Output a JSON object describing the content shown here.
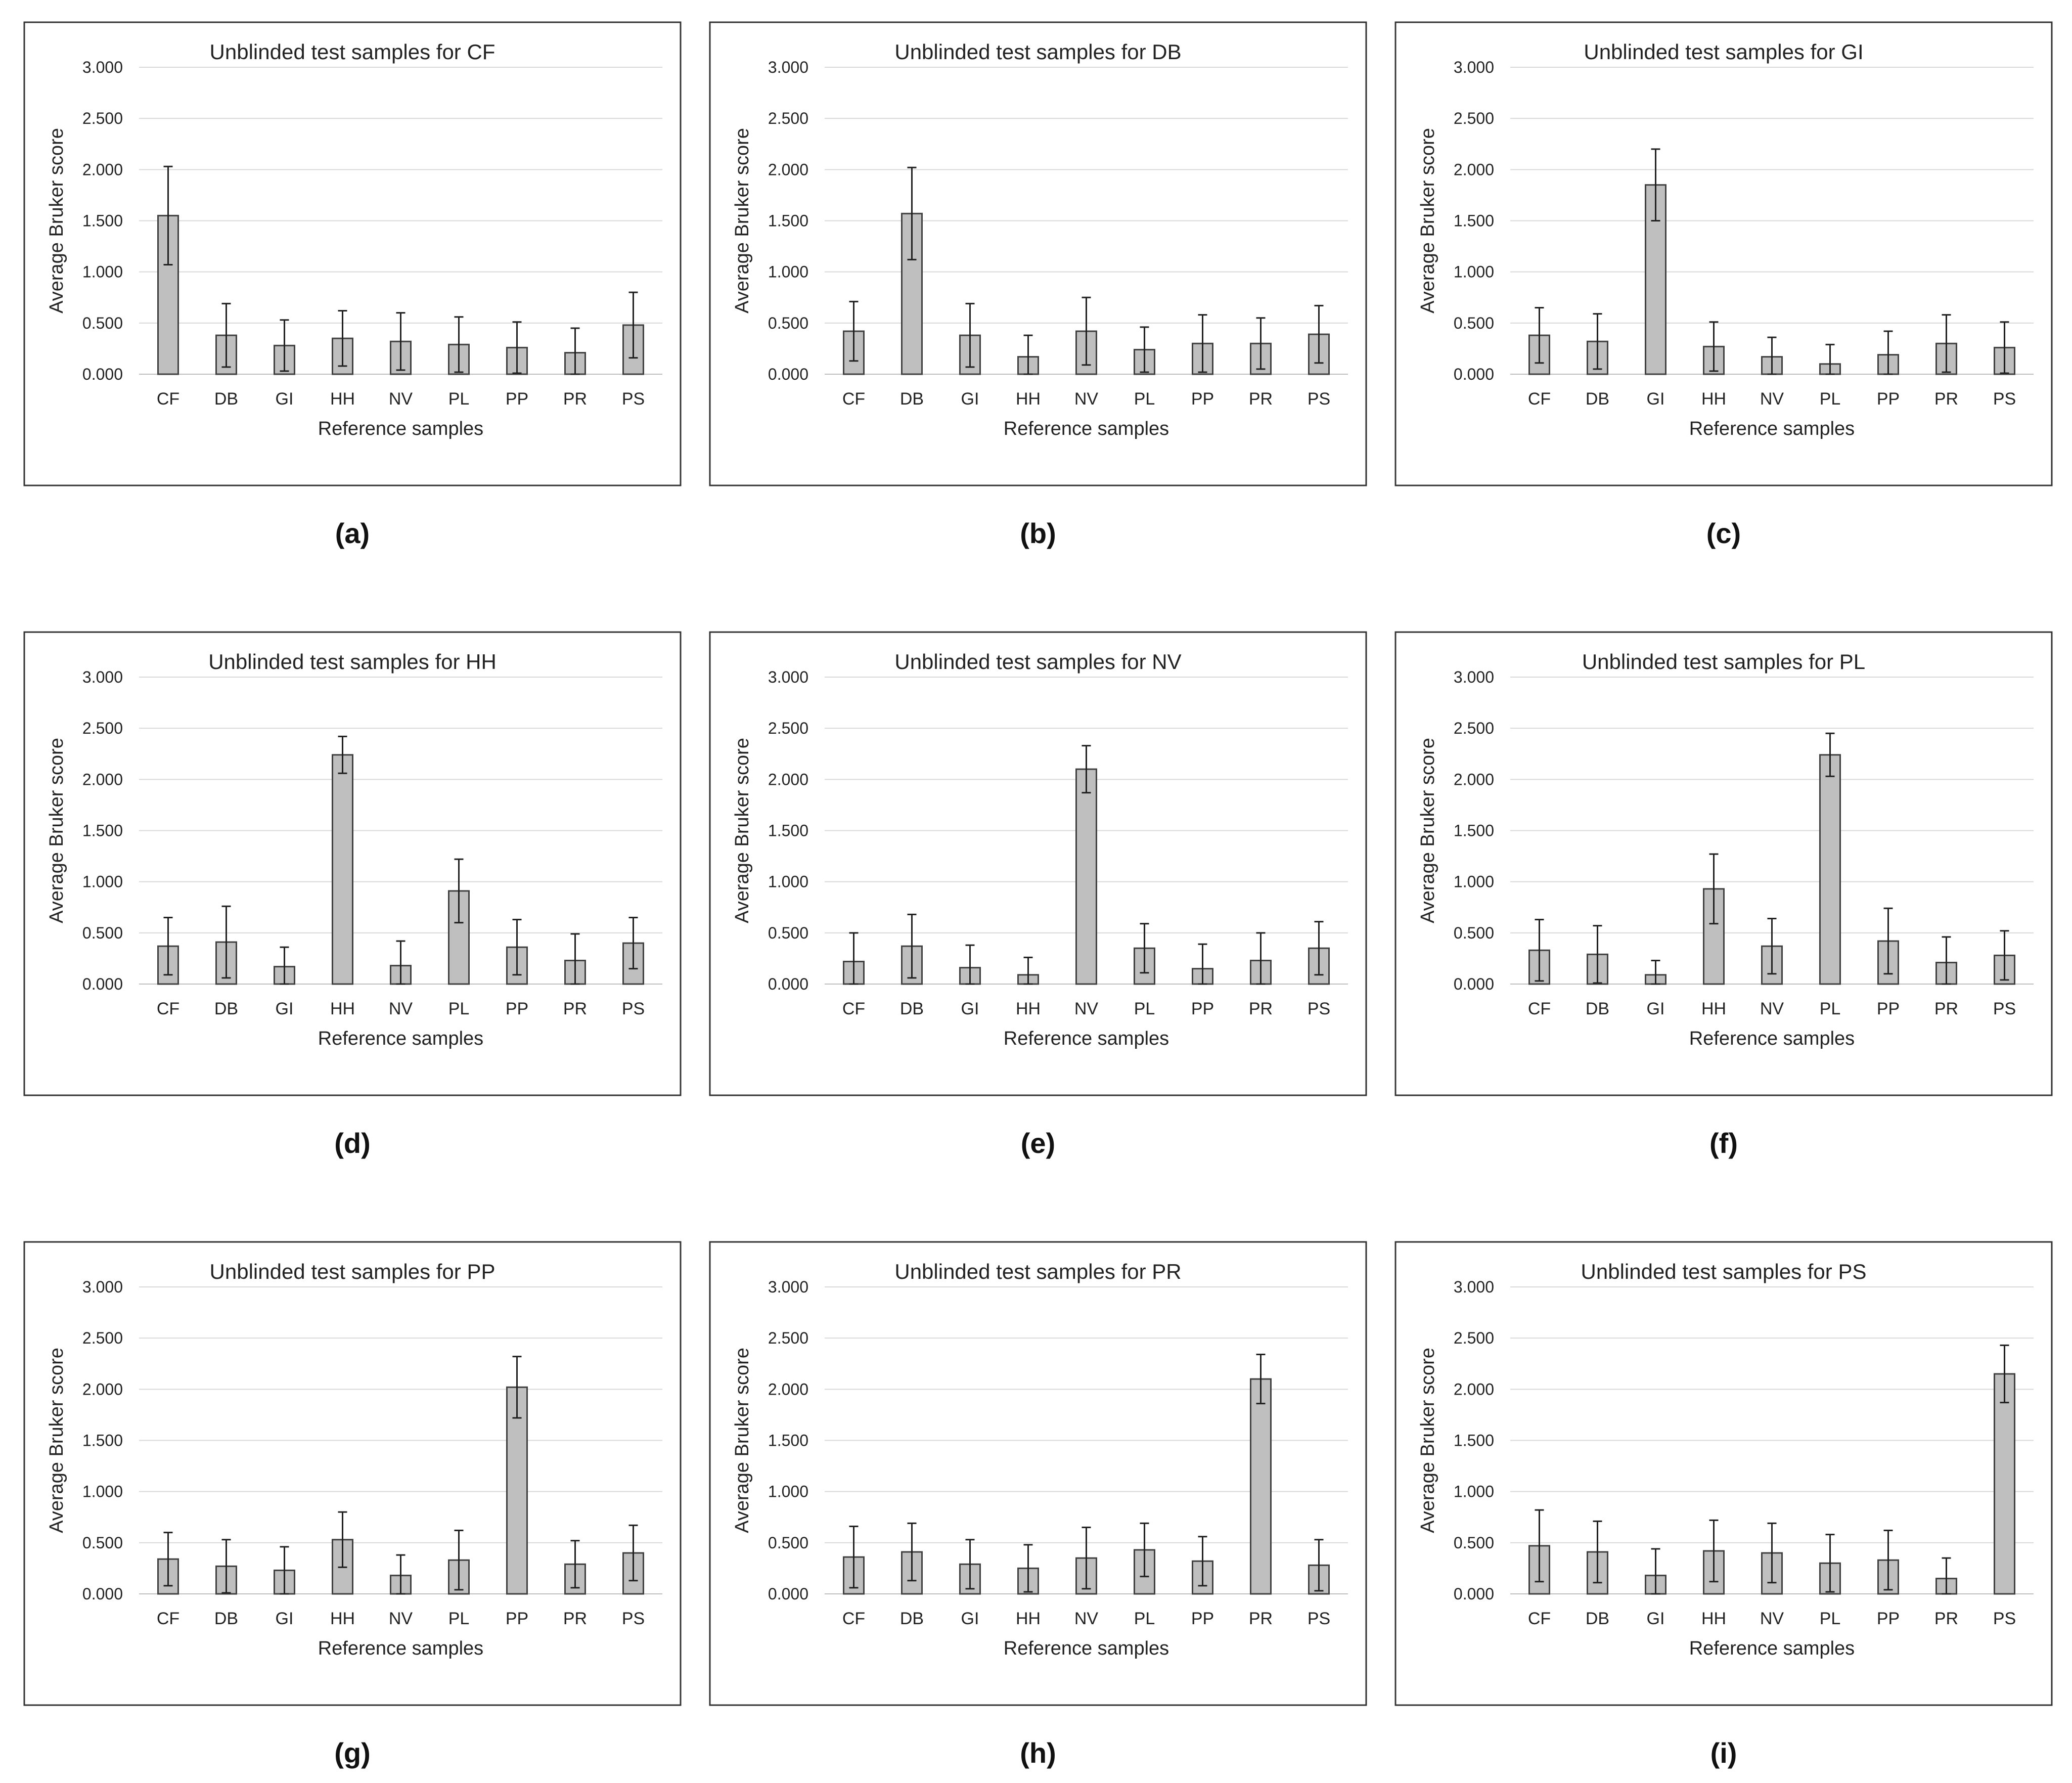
{
  "figure": {
    "background": "#ffffff",
    "bar_color": "#bfbfbf",
    "bar_edge_color": "#404040",
    "grid_color": "#d9d9d9"
  },
  "chart_data": [
    {
      "panel": "(a)",
      "type": "bar",
      "title": "Unblinded test samples for CF",
      "xlabel": "Reference samples",
      "ylabel": "Average Bruker score",
      "ylim": [
        0,
        3
      ],
      "yticks": [
        "0.000",
        "0.500",
        "1.000",
        "1.500",
        "2.000",
        "2.500",
        "3.000"
      ],
      "categories": [
        "CF",
        "DB",
        "GI",
        "HH",
        "NV",
        "PL",
        "PP",
        "PR",
        "PS"
      ],
      "values": [
        1.55,
        0.38,
        0.28,
        0.35,
        0.32,
        0.29,
        0.26,
        0.21,
        0.48
      ],
      "errors": [
        0.48,
        0.31,
        0.25,
        0.27,
        0.28,
        0.27,
        0.25,
        0.24,
        0.32
      ]
    },
    {
      "panel": "(b)",
      "type": "bar",
      "title": "Unblinded test samples for DB",
      "xlabel": "Reference samples",
      "ylabel": "Average Bruker score",
      "ylim": [
        0,
        3
      ],
      "yticks": [
        "0.000",
        "0.500",
        "1.000",
        "1.500",
        "2.000",
        "2.500",
        "3.000"
      ],
      "categories": [
        "CF",
        "DB",
        "GI",
        "HH",
        "NV",
        "PL",
        "PP",
        "PR",
        "PS"
      ],
      "values": [
        0.42,
        1.57,
        0.38,
        0.17,
        0.42,
        0.24,
        0.3,
        0.3,
        0.39
      ],
      "errors": [
        0.29,
        0.45,
        0.31,
        0.21,
        0.33,
        0.22,
        0.28,
        0.25,
        0.28
      ]
    },
    {
      "panel": "(c)",
      "type": "bar",
      "title": "Unblinded test samples for GI",
      "xlabel": "Reference samples",
      "ylabel": "Average Bruker score",
      "ylim": [
        0,
        3
      ],
      "yticks": [
        "0.000",
        "0.500",
        "1.000",
        "1.500",
        "2.000",
        "2.500",
        "3.000"
      ],
      "categories": [
        "CF",
        "DB",
        "GI",
        "HH",
        "NV",
        "PL",
        "PP",
        "PR",
        "PS"
      ],
      "values": [
        0.38,
        0.32,
        1.85,
        0.27,
        0.17,
        0.1,
        0.19,
        0.3,
        0.26
      ],
      "errors": [
        0.27,
        0.27,
        0.35,
        0.24,
        0.19,
        0.19,
        0.23,
        0.28,
        0.25
      ]
    },
    {
      "panel": "(d)",
      "type": "bar",
      "title": "Unblinded test samples for HH",
      "xlabel": "Reference samples",
      "ylabel": "Average Bruker score",
      "ylim": [
        0,
        3
      ],
      "yticks": [
        "0.000",
        "0.500",
        "1.000",
        "1.500",
        "2.000",
        "2.500",
        "3.000"
      ],
      "categories": [
        "CF",
        "DB",
        "GI",
        "HH",
        "NV",
        "PL",
        "PP",
        "PR",
        "PS"
      ],
      "values": [
        0.37,
        0.41,
        0.17,
        2.24,
        0.18,
        0.91,
        0.36,
        0.23,
        0.4
      ],
      "errors": [
        0.28,
        0.35,
        0.19,
        0.18,
        0.24,
        0.31,
        0.27,
        0.26,
        0.25
      ]
    },
    {
      "panel": "(e)",
      "type": "bar",
      "title": "Unblinded test samples for NV",
      "xlabel": "Reference samples",
      "ylabel": "Average Bruker score",
      "ylim": [
        0,
        3
      ],
      "yticks": [
        "0.000",
        "0.500",
        "1.000",
        "1.500",
        "2.000",
        "2.500",
        "3.000"
      ],
      "categories": [
        "CF",
        "DB",
        "GI",
        "HH",
        "NV",
        "PL",
        "PP",
        "PR",
        "PS"
      ],
      "values": [
        0.22,
        0.37,
        0.16,
        0.09,
        2.1,
        0.35,
        0.15,
        0.23,
        0.35
      ],
      "errors": [
        0.28,
        0.31,
        0.22,
        0.17,
        0.23,
        0.24,
        0.24,
        0.27,
        0.26
      ]
    },
    {
      "panel": "(f)",
      "type": "bar",
      "title": "Unblinded test samples for PL",
      "xlabel": "Reference samples",
      "ylabel": "Average Bruker score",
      "ylim": [
        0,
        3
      ],
      "yticks": [
        "0.000",
        "0.500",
        "1.000",
        "1.500",
        "2.000",
        "2.500",
        "3.000"
      ],
      "categories": [
        "CF",
        "DB",
        "GI",
        "HH",
        "NV",
        "PL",
        "PP",
        "PR",
        "PS"
      ],
      "values": [
        0.33,
        0.29,
        0.09,
        0.93,
        0.37,
        2.24,
        0.42,
        0.21,
        0.28
      ],
      "errors": [
        0.3,
        0.28,
        0.14,
        0.34,
        0.27,
        0.21,
        0.32,
        0.25,
        0.24
      ]
    },
    {
      "panel": "(g)",
      "type": "bar",
      "title": "Unblinded test samples for PP",
      "xlabel": "Reference samples",
      "ylabel": "Average Bruker score",
      "ylim": [
        0,
        3
      ],
      "yticks": [
        "0.000",
        "0.500",
        "1.000",
        "1.500",
        "2.000",
        "2.500",
        "3.000"
      ],
      "categories": [
        "CF",
        "DB",
        "GI",
        "HH",
        "NV",
        "PL",
        "PP",
        "PR",
        "PS"
      ],
      "values": [
        0.34,
        0.27,
        0.23,
        0.53,
        0.18,
        0.33,
        2.02,
        0.29,
        0.4
      ],
      "errors": [
        0.26,
        0.26,
        0.23,
        0.27,
        0.2,
        0.29,
        0.3,
        0.23,
        0.27
      ]
    },
    {
      "panel": "(h)",
      "type": "bar",
      "title": "Unblinded test samples for PR",
      "xlabel": "Reference samples",
      "ylabel": "Average Bruker score",
      "ylim": [
        0,
        3
      ],
      "yticks": [
        "0.000",
        "0.500",
        "1.000",
        "1.500",
        "2.000",
        "2.500",
        "3.000"
      ],
      "categories": [
        "CF",
        "DB",
        "GI",
        "HH",
        "NV",
        "PL",
        "PP",
        "PR",
        "PS"
      ],
      "values": [
        0.36,
        0.41,
        0.29,
        0.25,
        0.35,
        0.43,
        0.32,
        2.1,
        0.28
      ],
      "errors": [
        0.3,
        0.28,
        0.24,
        0.23,
        0.3,
        0.26,
        0.24,
        0.24,
        0.25
      ]
    },
    {
      "panel": "(i)",
      "type": "bar",
      "title": "Unblinded test samples for PS",
      "xlabel": "Reference samples",
      "ylabel": "Average Bruker score",
      "ylim": [
        0,
        3
      ],
      "yticks": [
        "0.000",
        "0.500",
        "1.000",
        "1.500",
        "2.000",
        "2.500",
        "3.000"
      ],
      "categories": [
        "CF",
        "DB",
        "GI",
        "HH",
        "NV",
        "PL",
        "PP",
        "PR",
        "PS"
      ],
      "values": [
        0.47,
        0.41,
        0.18,
        0.42,
        0.4,
        0.3,
        0.33,
        0.15,
        2.15
      ],
      "errors": [
        0.35,
        0.3,
        0.26,
        0.3,
        0.29,
        0.28,
        0.29,
        0.2,
        0.28
      ]
    }
  ]
}
